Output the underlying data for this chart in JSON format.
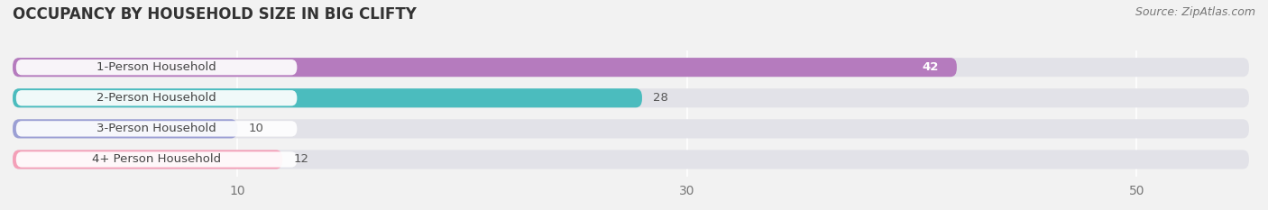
{
  "title": "OCCUPANCY BY HOUSEHOLD SIZE IN BIG CLIFTY",
  "source": "Source: ZipAtlas.com",
  "categories": [
    "1-Person Household",
    "2-Person Household",
    "3-Person Household",
    "4+ Person Household"
  ],
  "values": [
    42,
    28,
    10,
    12
  ],
  "bar_colors": [
    "#b57bbe",
    "#4bbcbe",
    "#9b9fd4",
    "#f4a0b8"
  ],
  "bar_label_colors": [
    "white",
    "black",
    "black",
    "black"
  ],
  "xlim": [
    0,
    55
  ],
  "xticks": [
    10,
    30,
    50
  ],
  "background_color": "#f2f2f2",
  "bar_bg_color": "#e2e2e8",
  "title_fontsize": 12,
  "source_fontsize": 9,
  "label_fontsize": 9.5,
  "value_fontsize": 9.5,
  "tick_fontsize": 10
}
